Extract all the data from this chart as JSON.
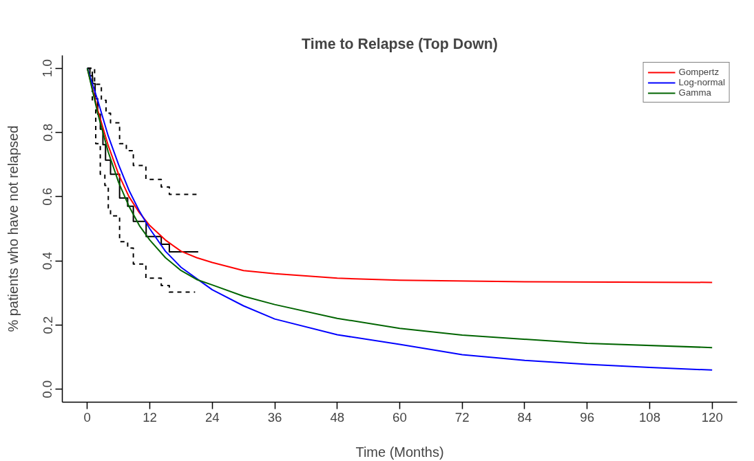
{
  "chart_data": {
    "type": "line",
    "title": "Time to Relapse (Top Down)",
    "xlabel": "Time (Months)",
    "ylabel": "% patients who have not relapsed",
    "xlim": [
      -4.8,
      124.8
    ],
    "ylim": [
      -0.04,
      1.04
    ],
    "xticks": [
      0,
      12,
      24,
      36,
      48,
      60,
      72,
      84,
      96,
      108,
      120
    ],
    "yticks": [
      {
        "value": 0,
        "label": "0.0"
      },
      {
        "value": 0.2,
        "label": "0.2"
      },
      {
        "value": 0.4,
        "label": "0.4"
      },
      {
        "value": 0.6,
        "label": "0.6"
      },
      {
        "value": 0.8,
        "label": "0.8"
      },
      {
        "value": 1,
        "label": "1.0"
      }
    ],
    "grid": false,
    "legend": "top right",
    "marker": "none",
    "series": [
      {
        "type": "step",
        "color": "#000000",
        "line_style": "solid",
        "x": [
          0,
          0.5,
          1.0,
          1.5,
          2.0,
          2.5,
          3.0,
          3.5,
          4.46,
          6.2,
          7.75,
          8.84,
          11.3,
          14.2,
          15.75,
          21.3
        ],
        "values": [
          1,
          0.976,
          0.952,
          0.905,
          0.857,
          0.81,
          0.762,
          0.714,
          0.67,
          0.596,
          0.57,
          0.523,
          0.476,
          0.452,
          0.428,
          0.428
        ]
      },
      {
        "type": "step",
        "color": "#000000",
        "line_style": "dashed",
        "x": [
          0,
          1.4,
          2.7,
          3.6,
          4.46,
          6.2,
          7.5,
          8.84,
          11.25,
          14.2,
          15.75,
          21.3
        ],
        "values": [
          1,
          0.95,
          0.9,
          0.86,
          0.83,
          0.765,
          0.743,
          0.697,
          0.654,
          0.63,
          0.607,
          0.607
        ]
      },
      {
        "type": "step",
        "color": "#000000",
        "line_style": "dashed",
        "x": [
          0,
          0.96,
          1.62,
          2.49,
          3.37,
          4.03,
          4.46,
          6.2,
          7.75,
          8.84,
          11.25,
          14.2,
          15.75,
          20.7
        ],
        "values": [
          1,
          0.896,
          0.765,
          0.67,
          0.635,
          0.565,
          0.54,
          0.46,
          0.44,
          0.39,
          0.346,
          0.323,
          0.303,
          0.303
        ]
      },
      {
        "name": "Gompertz",
        "color": "#ff0000",
        "line_style": "solid",
        "x": [
          0,
          2,
          4,
          6,
          8,
          10,
          12,
          15,
          18,
          21,
          24,
          30,
          36,
          48,
          60,
          84,
          120
        ],
        "values": [
          1,
          0.87,
          0.76,
          0.67,
          0.6,
          0.55,
          0.51,
          0.465,
          0.43,
          0.41,
          0.395,
          0.37,
          0.36,
          0.346,
          0.34,
          0.335,
          0.333
        ]
      },
      {
        "name": "Log-normal",
        "color": "#0000ff",
        "line_style": "solid",
        "x": [
          0,
          2,
          4,
          6,
          8,
          10,
          12,
          15,
          18,
          21,
          24,
          30,
          36,
          48,
          60,
          72,
          84,
          96,
          108,
          120
        ],
        "values": [
          1,
          0.9,
          0.79,
          0.7,
          0.62,
          0.555,
          0.5,
          0.43,
          0.38,
          0.345,
          0.31,
          0.26,
          0.219,
          0.17,
          0.14,
          0.108,
          0.09,
          0.078,
          0.068,
          0.06
        ]
      },
      {
        "name": "Gamma",
        "color": "#006400",
        "line_style": "solid",
        "x": [
          0,
          2,
          4,
          6,
          8,
          10,
          12,
          15,
          18,
          21,
          24,
          30,
          36,
          48,
          60,
          72,
          96,
          120
        ],
        "values": [
          1,
          0.86,
          0.74,
          0.645,
          0.57,
          0.51,
          0.465,
          0.41,
          0.37,
          0.342,
          0.325,
          0.29,
          0.264,
          0.221,
          0.19,
          0.169,
          0.143,
          0.13
        ]
      }
    ]
  }
}
